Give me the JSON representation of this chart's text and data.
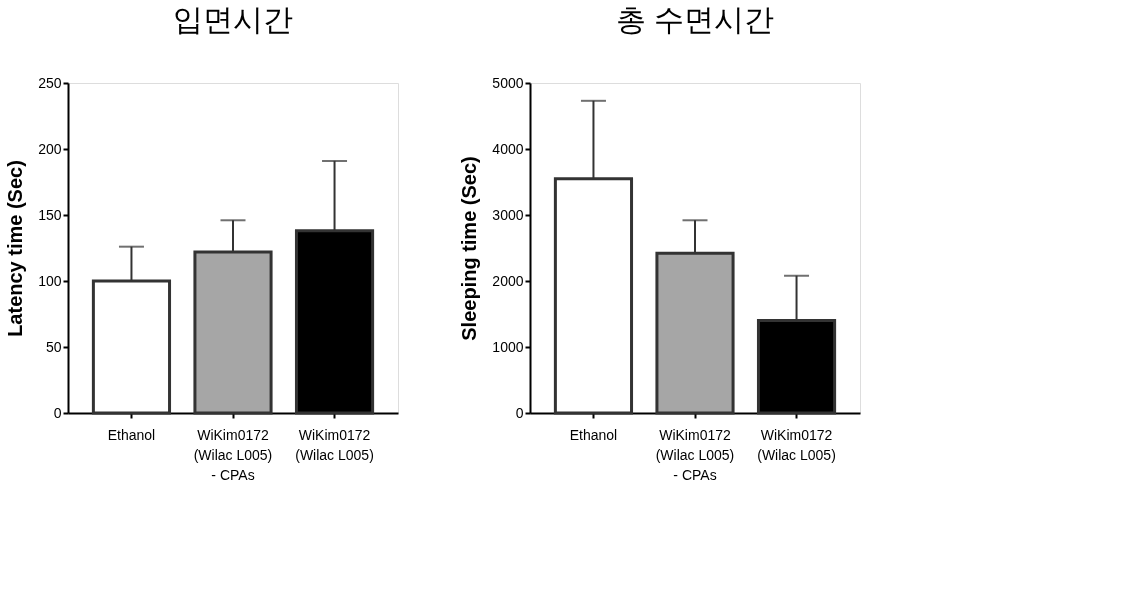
{
  "chart_data": [
    {
      "type": "bar",
      "title": "입면시간",
      "ylabel": "Latency time (Sec)",
      "categories": [
        "Ethanol",
        "WiKim0172\n(Wilac L005)\n- CPAs",
        "WiKim0172\n(Wilac L005)"
      ],
      "values": [
        100,
        122,
        138
      ],
      "colors": [
        "#ffffff",
        "#a6a6a6",
        "#000000"
      ],
      "errors": [
        [
          100,
          126
        ],
        [
          122,
          146
        ],
        [
          138,
          191
        ]
      ],
      "ylim": [
        0,
        250
      ],
      "yticks": [
        0,
        50,
        100,
        150,
        200,
        250
      ]
    },
    {
      "type": "bar",
      "title": "총 수면시간",
      "ylabel": "Sleeping time (Sec)",
      "categories": [
        "Ethanol",
        "WiKim0172\n(Wilac L005)\n- CPAs",
        "WiKim0172\n(Wilac L005)"
      ],
      "values": [
        3550,
        2420,
        1400
      ],
      "colors": [
        "#ffffff",
        "#a6a6a6",
        "#000000"
      ],
      "errors": [
        [
          3550,
          4730
        ],
        [
          2420,
          2920
        ],
        [
          1400,
          2080
        ]
      ],
      "ylim": [
        0,
        5000
      ],
      "yticks": [
        0,
        1000,
        2000,
        3000,
        4000,
        5000
      ]
    }
  ]
}
